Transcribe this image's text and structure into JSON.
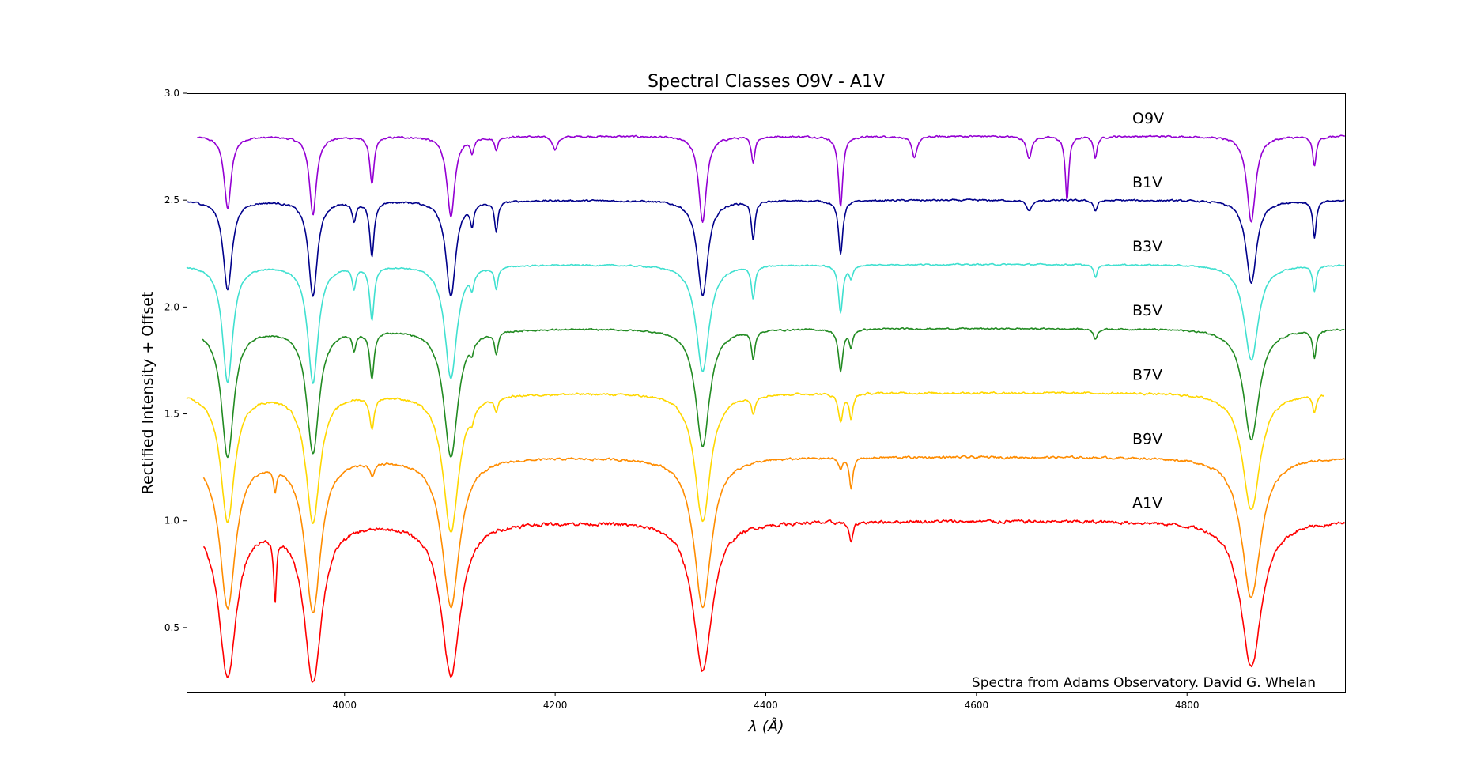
{
  "chart_data": {
    "type": "line",
    "title": "Spectral Classes O9V - A1V",
    "xlabel": "λ (Å)",
    "ylabel": "Rectified Intensity + Offset",
    "xlim": [
      3850,
      4950
    ],
    "ylim": [
      0.2,
      3.0
    ],
    "xticks": [
      4000,
      4200,
      4400,
      4600,
      4800
    ],
    "yticks": [
      0.5,
      1.0,
      1.5,
      2.0,
      2.5,
      3.0
    ],
    "ytick_labels": [
      "0.5",
      "1.0",
      "1.5",
      "2.0",
      "2.5",
      "3.0"
    ],
    "xtick_labels": [
      "4000",
      "4200",
      "4400",
      "4600",
      "4800"
    ],
    "grid": false,
    "annotation": "Spectra from Adams Observatory. David G. Whelan",
    "series": [
      {
        "name": "O9V",
        "color": "#9400d3",
        "offset": 1.8,
        "xstart": 3860,
        "xend": 4950,
        "noise": 0.008,
        "lines": [
          [
            3889,
            0.34,
            4
          ],
          [
            3970,
            0.37,
            4
          ],
          [
            4026,
            0.22,
            2.5
          ],
          [
            4101,
            0.38,
            4.5
          ],
          [
            4121,
            0.07,
            2
          ],
          [
            4144,
            0.06,
            2
          ],
          [
            4200,
            0.06,
            3
          ],
          [
            4340,
            0.4,
            4.5
          ],
          [
            4388,
            0.12,
            2
          ],
          [
            4471,
            0.33,
            2.5
          ],
          [
            4541,
            0.1,
            3
          ],
          [
            4650,
            0.1,
            3
          ],
          [
            4686,
            0.3,
            2
          ],
          [
            4713,
            0.1,
            2
          ],
          [
            4861,
            0.4,
            5
          ],
          [
            4921,
            0.14,
            2
          ]
        ]
      },
      {
        "name": "B1V",
        "color": "#00008b",
        "offset": 1.5,
        "xstart": 3850,
        "xend": 4950,
        "noise": 0.008,
        "lines": [
          [
            3889,
            0.42,
            5
          ],
          [
            3970,
            0.45,
            5
          ],
          [
            4009,
            0.09,
            2
          ],
          [
            4026,
            0.26,
            2.5
          ],
          [
            4101,
            0.45,
            5.5
          ],
          [
            4121,
            0.1,
            2
          ],
          [
            4144,
            0.14,
            2
          ],
          [
            4340,
            0.45,
            6
          ],
          [
            4388,
            0.18,
            2
          ],
          [
            4471,
            0.25,
            2.5
          ],
          [
            4650,
            0.05,
            3
          ],
          [
            4713,
            0.05,
            2
          ],
          [
            4861,
            0.39,
            6
          ],
          [
            4921,
            0.17,
            2
          ]
        ]
      },
      {
        "name": "B3V",
        "color": "#40e0d0",
        "offset": 1.2,
        "xstart": 3850,
        "xend": 4950,
        "noise": 0.006,
        "lines": [
          [
            3889,
            0.55,
            6
          ],
          [
            3970,
            0.55,
            6
          ],
          [
            4009,
            0.1,
            2
          ],
          [
            4026,
            0.25,
            2.5
          ],
          [
            4101,
            0.53,
            7
          ],
          [
            4121,
            0.07,
            2
          ],
          [
            4144,
            0.1,
            2
          ],
          [
            4340,
            0.5,
            7.5
          ],
          [
            4388,
            0.15,
            2
          ],
          [
            4471,
            0.22,
            2.5
          ],
          [
            4481,
            0.06,
            2
          ],
          [
            4713,
            0.06,
            2
          ],
          [
            4861,
            0.45,
            8
          ],
          [
            4921,
            0.12,
            2
          ]
        ]
      },
      {
        "name": "B5V",
        "color": "#228b22",
        "offset": 0.9,
        "xstart": 3865,
        "xend": 4950,
        "noise": 0.007,
        "lines": [
          [
            3889,
            0.6,
            7
          ],
          [
            3970,
            0.58,
            7
          ],
          [
            4009,
            0.08,
            2
          ],
          [
            4026,
            0.22,
            2.5
          ],
          [
            4101,
            0.6,
            8
          ],
          [
            4121,
            0.05,
            2
          ],
          [
            4144,
            0.1,
            2
          ],
          [
            4340,
            0.55,
            8
          ],
          [
            4388,
            0.13,
            2
          ],
          [
            4471,
            0.2,
            2.5
          ],
          [
            4481,
            0.08,
            2
          ],
          [
            4713,
            0.05,
            2
          ],
          [
            4861,
            0.52,
            9
          ],
          [
            4921,
            0.13,
            2
          ]
        ]
      },
      {
        "name": "B7V",
        "color": "#ffd700",
        "offset": 0.6,
        "xstart": 3850,
        "xend": 4930,
        "noise": 0.009,
        "lines": [
          [
            3889,
            0.6,
            8
          ],
          [
            3970,
            0.6,
            8
          ],
          [
            4026,
            0.15,
            2.5
          ],
          [
            4101,
            0.65,
            9
          ],
          [
            4121,
            0.05,
            2
          ],
          [
            4144,
            0.06,
            2
          ],
          [
            4340,
            0.6,
            9
          ],
          [
            4388,
            0.08,
            2
          ],
          [
            4471,
            0.13,
            2.5
          ],
          [
            4481,
            0.12,
            2
          ],
          [
            4861,
            0.55,
            10
          ],
          [
            4921,
            0.08,
            2
          ]
        ]
      },
      {
        "name": "B9V",
        "color": "#ff8c00",
        "offset": 0.3,
        "xstart": 3866,
        "xend": 4950,
        "noise": 0.01,
        "lines": [
          [
            3889,
            0.7,
            9
          ],
          [
            3934,
            0.1,
            1.5
          ],
          [
            3970,
            0.72,
            9
          ],
          [
            4026,
            0.06,
            2.5
          ],
          [
            4101,
            0.7,
            10
          ],
          [
            4340,
            0.7,
            10
          ],
          [
            4471,
            0.05,
            2
          ],
          [
            4481,
            0.14,
            2
          ],
          [
            4861,
            0.66,
            11
          ]
        ]
      },
      {
        "name": "A1V",
        "color": "#ff0000",
        "offset": 0.0,
        "xstart": 3866,
        "xend": 4950,
        "noise": 0.015,
        "lines": [
          [
            3889,
            0.72,
            10
          ],
          [
            3934,
            0.3,
            1.5
          ],
          [
            3970,
            0.74,
            10
          ],
          [
            4101,
            0.72,
            11
          ],
          [
            4340,
            0.7,
            11
          ],
          [
            4481,
            0.1,
            2
          ],
          [
            4861,
            0.68,
            12
          ]
        ]
      }
    ]
  }
}
